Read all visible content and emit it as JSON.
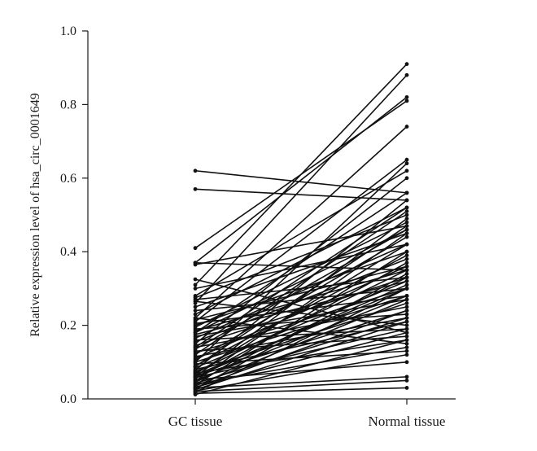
{
  "chart_data": {
    "type": "line",
    "title": "",
    "ylabel": "Relative expression level of hsa_circ_0001649",
    "xlabel": "",
    "categories": [
      "GC tissue",
      "Normal tissue"
    ],
    "ylim": [
      0.0,
      1.0
    ],
    "yticks": [
      "0.0",
      "0.2",
      "0.4",
      "0.6",
      "0.8",
      "1.0"
    ],
    "grid": false,
    "legend": "none",
    "line_color": "#111111",
    "pairs": [
      [
        0.62,
        0.56
      ],
      [
        0.57,
        0.54
      ],
      [
        0.41,
        0.81
      ],
      [
        0.37,
        0.82
      ],
      [
        0.365,
        0.47
      ],
      [
        0.37,
        0.35
      ],
      [
        0.325,
        0.18
      ],
      [
        0.31,
        0.91
      ],
      [
        0.3,
        0.42
      ],
      [
        0.28,
        0.62
      ],
      [
        0.275,
        0.5
      ],
      [
        0.27,
        0.33
      ],
      [
        0.265,
        0.2
      ],
      [
        0.26,
        0.88
      ],
      [
        0.25,
        0.45
      ],
      [
        0.24,
        0.3
      ],
      [
        0.23,
        0.52
      ],
      [
        0.22,
        0.15
      ],
      [
        0.215,
        0.36
      ],
      [
        0.21,
        0.65
      ],
      [
        0.205,
        0.28
      ],
      [
        0.2,
        0.4
      ],
      [
        0.195,
        0.48
      ],
      [
        0.19,
        0.23
      ],
      [
        0.185,
        0.35
      ],
      [
        0.18,
        0.56
      ],
      [
        0.175,
        0.32
      ],
      [
        0.17,
        0.27
      ],
      [
        0.165,
        0.42
      ],
      [
        0.16,
        0.19
      ],
      [
        0.155,
        0.38
      ],
      [
        0.15,
        0.6
      ],
      [
        0.145,
        0.33
      ],
      [
        0.14,
        0.25
      ],
      [
        0.135,
        0.46
      ],
      [
        0.13,
        0.17
      ],
      [
        0.125,
        0.3
      ],
      [
        0.12,
        0.51
      ],
      [
        0.115,
        0.22
      ],
      [
        0.11,
        0.36
      ],
      [
        0.105,
        0.44
      ],
      [
        0.1,
        0.28
      ],
      [
        0.095,
        0.13
      ],
      [
        0.09,
        0.39
      ],
      [
        0.088,
        0.47
      ],
      [
        0.085,
        0.32
      ],
      [
        0.08,
        0.21
      ],
      [
        0.078,
        0.54
      ],
      [
        0.075,
        0.26
      ],
      [
        0.072,
        0.35
      ],
      [
        0.07,
        0.16
      ],
      [
        0.068,
        0.42
      ],
      [
        0.065,
        0.3
      ],
      [
        0.062,
        0.24
      ],
      [
        0.06,
        0.49
      ],
      [
        0.058,
        0.19
      ],
      [
        0.055,
        0.37
      ],
      [
        0.052,
        0.1
      ],
      [
        0.05,
        0.28
      ],
      [
        0.048,
        0.45
      ],
      [
        0.045,
        0.33
      ],
      [
        0.042,
        0.22
      ],
      [
        0.04,
        0.14
      ],
      [
        0.038,
        0.4
      ],
      [
        0.035,
        0.27
      ],
      [
        0.032,
        0.18
      ],
      [
        0.03,
        0.06
      ],
      [
        0.028,
        0.34
      ],
      [
        0.025,
        0.21
      ],
      [
        0.022,
        0.12
      ],
      [
        0.02,
        0.05
      ],
      [
        0.018,
        0.3
      ],
      [
        0.015,
        0.03
      ],
      [
        0.012,
        0.16
      ],
      [
        0.22,
        0.74
      ],
      [
        0.18,
        0.46
      ],
      [
        0.14,
        0.52
      ],
      [
        0.1,
        0.64
      ],
      [
        0.06,
        0.31
      ],
      [
        0.03,
        0.24
      ]
    ]
  }
}
